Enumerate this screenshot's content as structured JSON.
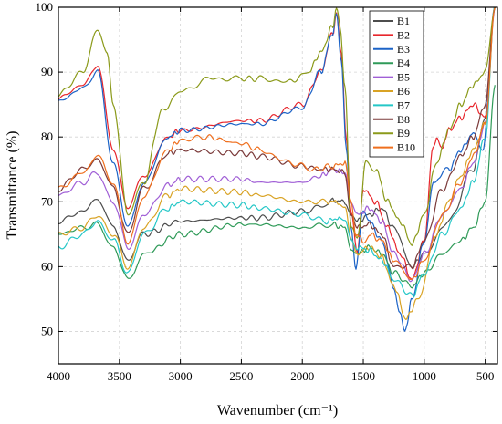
{
  "chart_data": {
    "type": "line",
    "xlabel": "Wavenumber (cm⁻¹)",
    "ylabel": "Transmittance (%)",
    "xlim": [
      4000,
      400
    ],
    "ylim": [
      45,
      100
    ],
    "x_reversed": true,
    "x_ticks": [
      4000,
      3500,
      3000,
      2500,
      2000,
      1500,
      1000,
      500
    ],
    "x_tick_labels": [
      "4000",
      "3500",
      "3000",
      "2500",
      "2000",
      "1500",
      "1000",
      "500"
    ],
    "y_ticks": [
      50,
      60,
      70,
      80,
      90,
      100
    ],
    "y_tick_labels": [
      "50",
      "60",
      "70",
      "80",
      "90",
      "100"
    ],
    "grid": true,
    "legend_position": "top-right",
    "series": [
      {
        "name": "B1",
        "color": "#4d4d4d",
        "points": [
          [
            4000,
            67
          ],
          [
            3800,
            68.5
          ],
          [
            3680,
            70.5
          ],
          [
            3550,
            66
          ],
          [
            3430,
            61
          ],
          [
            3300,
            65
          ],
          [
            3000,
            67
          ],
          [
            2500,
            67.5
          ],
          [
            2350,
            67.5
          ],
          [
            2000,
            68.5
          ],
          [
            1800,
            69.5
          ],
          [
            1750,
            70.2
          ],
          [
            1650,
            70
          ],
          [
            1600,
            68
          ],
          [
            1550,
            67
          ],
          [
            1450,
            68
          ],
          [
            1350,
            69
          ],
          [
            1250,
            66
          ],
          [
            1100,
            60
          ],
          [
            1000,
            62
          ],
          [
            800,
            67
          ],
          [
            600,
            75
          ],
          [
            500,
            83
          ],
          [
            420,
            100
          ]
        ]
      },
      {
        "name": "B2",
        "color": "#e8262c",
        "points": [
          [
            4000,
            86
          ],
          [
            3800,
            88
          ],
          [
            3680,
            91
          ],
          [
            3550,
            78
          ],
          [
            3430,
            69
          ],
          [
            3300,
            74
          ],
          [
            3100,
            80
          ],
          [
            3000,
            81
          ],
          [
            2500,
            82.5
          ],
          [
            2350,
            82.5
          ],
          [
            2000,
            85
          ],
          [
            1850,
            90
          ],
          [
            1750,
            96
          ],
          [
            1720,
            99
          ],
          [
            1680,
            93
          ],
          [
            1640,
            80
          ],
          [
            1600,
            68
          ],
          [
            1550,
            62
          ],
          [
            1500,
            72
          ],
          [
            1400,
            70
          ],
          [
            1300,
            66
          ],
          [
            1200,
            62
          ],
          [
            1100,
            58
          ],
          [
            1000,
            64
          ],
          [
            930,
            78
          ],
          [
            900,
            80
          ],
          [
            860,
            78
          ],
          [
            800,
            81
          ],
          [
            700,
            83
          ],
          [
            600,
            85
          ],
          [
            500,
            83
          ],
          [
            420,
            100
          ]
        ]
      },
      {
        "name": "B3",
        "color": "#1c63c7",
        "points": [
          [
            4000,
            85.5
          ],
          [
            3800,
            87.5
          ],
          [
            3680,
            90
          ],
          [
            3550,
            76
          ],
          [
            3430,
            66
          ],
          [
            3300,
            73
          ],
          [
            3100,
            80
          ],
          [
            3000,
            81
          ],
          [
            2500,
            82
          ],
          [
            2350,
            82
          ],
          [
            2000,
            84.5
          ],
          [
            1850,
            90
          ],
          [
            1750,
            96
          ],
          [
            1720,
            99
          ],
          [
            1680,
            92
          ],
          [
            1640,
            78
          ],
          [
            1600,
            66
          ],
          [
            1560,
            60
          ],
          [
            1500,
            69
          ],
          [
            1450,
            67
          ],
          [
            1350,
            64
          ],
          [
            1250,
            57
          ],
          [
            1200,
            53
          ],
          [
            1160,
            50
          ],
          [
            1100,
            55
          ],
          [
            1000,
            64
          ],
          [
            920,
            73
          ],
          [
            880,
            74
          ],
          [
            800,
            75
          ],
          [
            700,
            78
          ],
          [
            600,
            80.5
          ],
          [
            520,
            78
          ],
          [
            420,
            100
          ]
        ]
      },
      {
        "name": "B4",
        "color": "#2f9a58",
        "points": [
          [
            4000,
            65
          ],
          [
            3800,
            66
          ],
          [
            3680,
            66.5
          ],
          [
            3550,
            63
          ],
          [
            3430,
            58
          ],
          [
            3300,
            62
          ],
          [
            3000,
            65
          ],
          [
            2500,
            66.5
          ],
          [
            2350,
            66.5
          ],
          [
            2000,
            66
          ],
          [
            1750,
            66.5
          ],
          [
            1650,
            66
          ],
          [
            1600,
            63
          ],
          [
            1550,
            62
          ],
          [
            1450,
            63
          ],
          [
            1350,
            62
          ],
          [
            1250,
            59
          ],
          [
            1100,
            57
          ],
          [
            1000,
            59
          ],
          [
            850,
            62
          ],
          [
            700,
            64
          ],
          [
            600,
            66
          ],
          [
            500,
            70
          ],
          [
            420,
            88
          ]
        ]
      },
      {
        "name": "B5",
        "color": "#a05fd6",
        "points": [
          [
            4000,
            71
          ],
          [
            3800,
            73
          ],
          [
            3680,
            74.5
          ],
          [
            3550,
            70
          ],
          [
            3430,
            63
          ],
          [
            3300,
            68
          ],
          [
            3100,
            72.5
          ],
          [
            3000,
            73.5
          ],
          [
            2500,
            73.5
          ],
          [
            2350,
            73
          ],
          [
            2000,
            73
          ],
          [
            1850,
            74
          ],
          [
            1750,
            75
          ],
          [
            1650,
            74.5
          ],
          [
            1600,
            70
          ],
          [
            1550,
            68
          ],
          [
            1450,
            69
          ],
          [
            1350,
            67
          ],
          [
            1250,
            62
          ],
          [
            1100,
            58
          ],
          [
            1000,
            62
          ],
          [
            850,
            68
          ],
          [
            700,
            72
          ],
          [
            600,
            76
          ],
          [
            500,
            82
          ],
          [
            420,
            100
          ]
        ]
      },
      {
        "name": "B6",
        "color": "#d9a325",
        "points": [
          [
            4000,
            65
          ],
          [
            3800,
            66
          ],
          [
            3680,
            68
          ],
          [
            3550,
            65
          ],
          [
            3430,
            60
          ],
          [
            3300,
            66
          ],
          [
            3100,
            71
          ],
          [
            3000,
            72
          ],
          [
            2500,
            71.5
          ],
          [
            2350,
            71
          ],
          [
            2000,
            70
          ],
          [
            1800,
            70
          ],
          [
            1700,
            70
          ],
          [
            1650,
            69
          ],
          [
            1600,
            64
          ],
          [
            1550,
            62
          ],
          [
            1450,
            63
          ],
          [
            1350,
            61.5
          ],
          [
            1250,
            57
          ],
          [
            1150,
            52
          ],
          [
            1050,
            55
          ],
          [
            900,
            65
          ],
          [
            800,
            70
          ],
          [
            700,
            74
          ],
          [
            600,
            78
          ],
          [
            500,
            82
          ],
          [
            420,
            100
          ]
        ]
      },
      {
        "name": "B7",
        "color": "#25c7c7",
        "points": [
          [
            4000,
            63
          ],
          [
            3800,
            65
          ],
          [
            3680,
            67
          ],
          [
            3550,
            64
          ],
          [
            3430,
            59
          ],
          [
            3300,
            65
          ],
          [
            3100,
            69
          ],
          [
            3000,
            70
          ],
          [
            2500,
            69.5
          ],
          [
            2350,
            69
          ],
          [
            2000,
            68
          ],
          [
            1800,
            67
          ],
          [
            1700,
            67.5
          ],
          [
            1650,
            67
          ],
          [
            1600,
            64
          ],
          [
            1550,
            63
          ],
          [
            1450,
            62.5
          ],
          [
            1350,
            61
          ],
          [
            1250,
            58
          ],
          [
            1100,
            55.5
          ],
          [
            1000,
            59
          ],
          [
            850,
            65
          ],
          [
            700,
            69
          ],
          [
            600,
            73
          ],
          [
            500,
            80
          ],
          [
            420,
            100
          ]
        ]
      },
      {
        "name": "B8",
        "color": "#7b3a3a",
        "points": [
          [
            4000,
            72
          ],
          [
            3800,
            75
          ],
          [
            3680,
            76.5
          ],
          [
            3550,
            72
          ],
          [
            3430,
            65
          ],
          [
            3300,
            72
          ],
          [
            3100,
            77.5
          ],
          [
            3000,
            78
          ],
          [
            2500,
            77.5
          ],
          [
            2350,
            77
          ],
          [
            2000,
            75.5
          ],
          [
            1850,
            75
          ],
          [
            1750,
            75
          ],
          [
            1650,
            74.5
          ],
          [
            1600,
            68
          ],
          [
            1550,
            66
          ],
          [
            1450,
            66.5
          ],
          [
            1350,
            65
          ],
          [
            1250,
            60
          ],
          [
            1100,
            60
          ],
          [
            1000,
            64
          ],
          [
            850,
            72
          ],
          [
            700,
            77
          ],
          [
            600,
            80
          ],
          [
            500,
            85
          ],
          [
            420,
            100
          ]
        ]
      },
      {
        "name": "B9",
        "color": "#8b9a1a",
        "points": [
          [
            4000,
            86.5
          ],
          [
            3800,
            90
          ],
          [
            3680,
            96.5
          ],
          [
            3600,
            93
          ],
          [
            3550,
            85
          ],
          [
            3430,
            68
          ],
          [
            3300,
            73
          ],
          [
            3150,
            84
          ],
          [
            3000,
            87
          ],
          [
            2750,
            89
          ],
          [
            2500,
            89
          ],
          [
            2350,
            89
          ],
          [
            2100,
            88.5
          ],
          [
            1950,
            90
          ],
          [
            1850,
            93
          ],
          [
            1750,
            97
          ],
          [
            1720,
            100
          ],
          [
            1690,
            97
          ],
          [
            1650,
            88
          ],
          [
            1600,
            66
          ],
          [
            1550,
            64
          ],
          [
            1480,
            76
          ],
          [
            1400,
            75
          ],
          [
            1300,
            70
          ],
          [
            1200,
            67
          ],
          [
            1100,
            63.5
          ],
          [
            1000,
            68
          ],
          [
            900,
            76
          ],
          [
            800,
            81
          ],
          [
            700,
            85
          ],
          [
            600,
            88
          ],
          [
            500,
            90
          ],
          [
            420,
            100
          ]
        ]
      },
      {
        "name": "B10",
        "color": "#ef6f1e",
        "points": [
          [
            4000,
            72
          ],
          [
            3800,
            74.5
          ],
          [
            3680,
            77
          ],
          [
            3550,
            73
          ],
          [
            3430,
            63.5
          ],
          [
            3300,
            71
          ],
          [
            3100,
            78
          ],
          [
            3000,
            79.5
          ],
          [
            2800,
            80
          ],
          [
            2500,
            79
          ],
          [
            2350,
            78
          ],
          [
            2100,
            76
          ],
          [
            1900,
            75
          ],
          [
            1750,
            75.5
          ],
          [
            1650,
            76
          ],
          [
            1600,
            70
          ],
          [
            1560,
            65
          ],
          [
            1500,
            64
          ],
          [
            1450,
            65
          ],
          [
            1350,
            64
          ],
          [
            1250,
            61
          ],
          [
            1100,
            58
          ],
          [
            1000,
            61
          ],
          [
            850,
            68
          ],
          [
            700,
            73
          ],
          [
            600,
            77
          ],
          [
            500,
            82
          ],
          [
            420,
            100
          ]
        ]
      }
    ]
  }
}
